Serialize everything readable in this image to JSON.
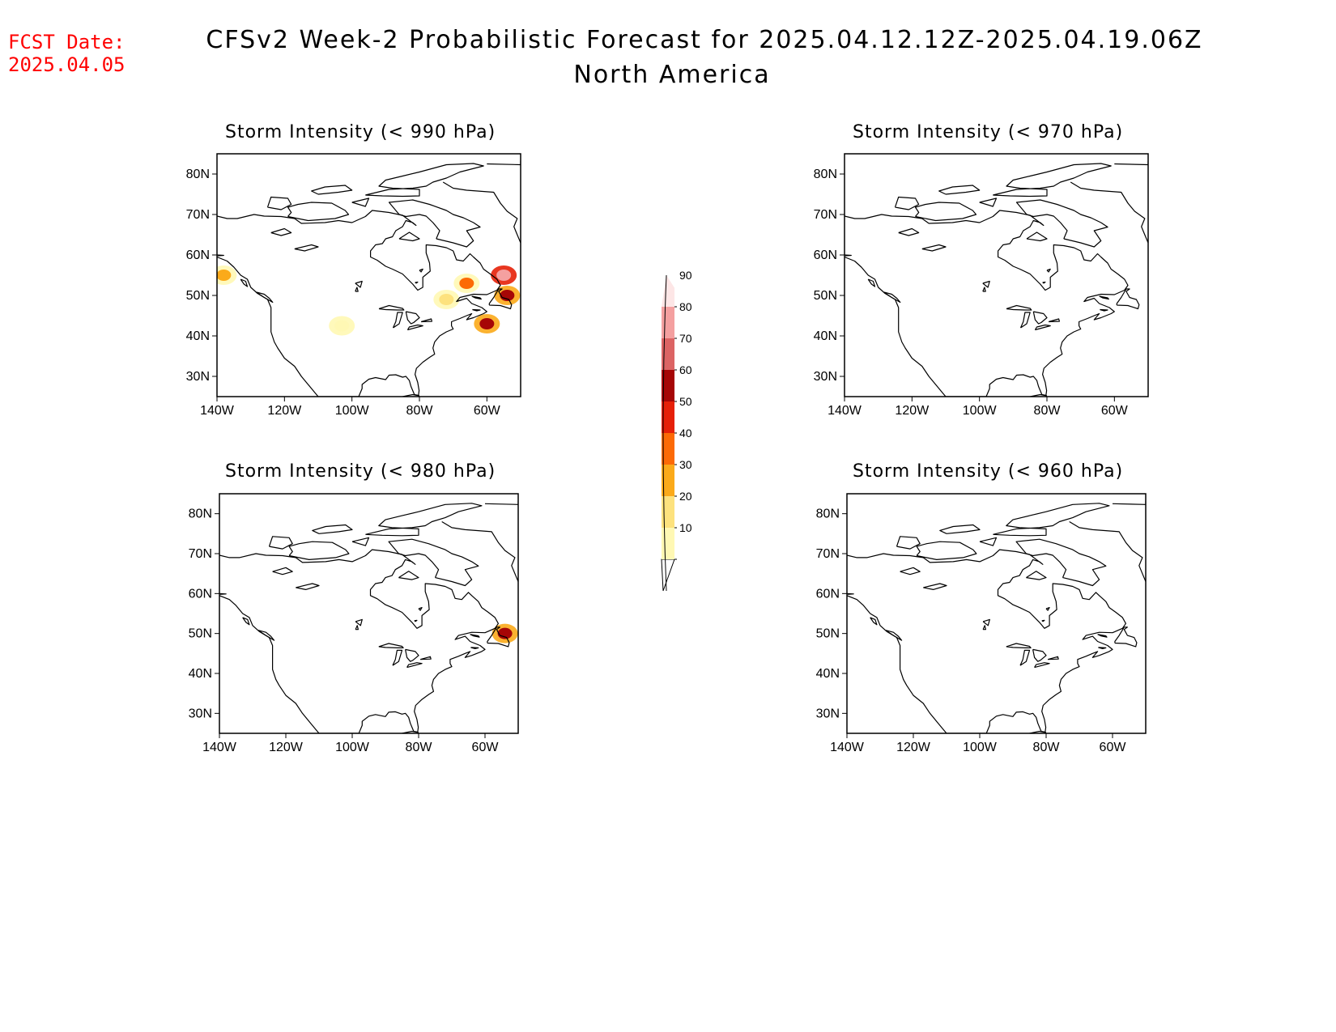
{
  "header": {
    "fcst_date_label": "FCST Date:",
    "fcst_date_value": "2025.04.05",
    "title_line1": "CFSv2 Week-2 Probabilistic Forecast for 2025.04.12.12Z-2025.04.19.06Z",
    "title_line2": "North America"
  },
  "panels": [
    {
      "title": "Storm Intensity (< 990 hPa)",
      "threshold_hPa": 990
    },
    {
      "title": "Storm Intensity (< 970 hPa)",
      "threshold_hPa": 970
    },
    {
      "title": "Storm Intensity (< 980 hPa)",
      "threshold_hPa": 980
    },
    {
      "title": "Storm Intensity (< 960 hPa)",
      "threshold_hPa": 960
    }
  ],
  "axes": {
    "lat_labels": [
      "80N",
      "70N",
      "60N",
      "50N",
      "40N",
      "30N"
    ],
    "lat_values": [
      80,
      70,
      60,
      50,
      40,
      30
    ],
    "lon_labels": [
      "140W",
      "120W",
      "100W",
      "80W",
      "60W"
    ],
    "lon_values": [
      -140,
      -120,
      -100,
      -80,
      -60
    ],
    "lat_range": [
      25,
      85
    ],
    "lon_range": [
      -140,
      -50
    ]
  },
  "colorbar": {
    "labels": [
      "10",
      "20",
      "30",
      "40",
      "50",
      "60",
      "70",
      "80",
      "90"
    ],
    "colors": [
      "#fff8b4",
      "#fde27e",
      "#fbaa1a",
      "#fc6a06",
      "#e62008",
      "#a60606",
      "#dc6464",
      "#f4a0a0",
      "#fde6e6"
    ]
  },
  "probability_features": [
    {
      "panel": 0,
      "lon": -138,
      "lat": 55,
      "prob": 30
    },
    {
      "panel": 0,
      "lon": -103,
      "lat": 42.5,
      "prob": 10
    },
    {
      "panel": 0,
      "lon": -72,
      "lat": 49,
      "prob": 20
    },
    {
      "panel": 0,
      "lon": -66,
      "lat": 53,
      "prob": 45
    },
    {
      "panel": 0,
      "lon": -60,
      "lat": 43,
      "prob": 60
    },
    {
      "panel": 0,
      "lon": -55,
      "lat": 55,
      "prob": 85
    },
    {
      "panel": 0,
      "lon": -54,
      "lat": 50,
      "prob": 65
    },
    {
      "panel": 2,
      "lon": -54,
      "lat": 50,
      "prob": 60
    }
  ]
}
